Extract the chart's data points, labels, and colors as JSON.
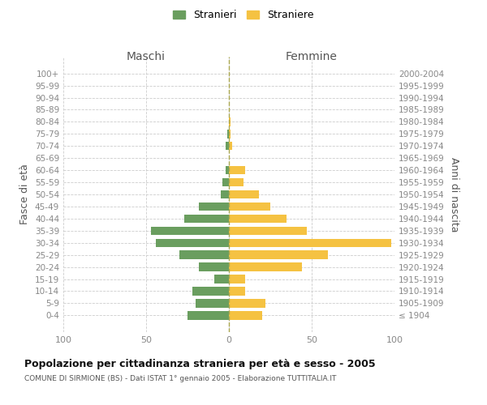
{
  "age_groups": [
    "100+",
    "95-99",
    "90-94",
    "85-89",
    "80-84",
    "75-79",
    "70-74",
    "65-69",
    "60-64",
    "55-59",
    "50-54",
    "45-49",
    "40-44",
    "35-39",
    "30-34",
    "25-29",
    "20-24",
    "15-19",
    "10-14",
    "5-9",
    "0-4"
  ],
  "birth_years": [
    "≤ 1904",
    "1905-1909",
    "1910-1914",
    "1915-1919",
    "1920-1924",
    "1925-1929",
    "1930-1934",
    "1935-1939",
    "1940-1944",
    "1945-1949",
    "1950-1954",
    "1955-1959",
    "1960-1964",
    "1965-1969",
    "1970-1974",
    "1975-1979",
    "1980-1984",
    "1985-1989",
    "1990-1994",
    "1995-1999",
    "2000-2004"
  ],
  "maschi": [
    0,
    0,
    0,
    0,
    0,
    1,
    2,
    0,
    2,
    4,
    5,
    18,
    27,
    47,
    44,
    30,
    18,
    9,
    22,
    20,
    25
  ],
  "femmine": [
    0,
    0,
    0,
    0,
    1,
    1,
    2,
    0,
    10,
    9,
    18,
    25,
    35,
    47,
    98,
    60,
    44,
    10,
    10,
    22,
    20
  ],
  "maschi_color": "#6a9e5f",
  "femmine_color": "#f5c242",
  "title": "Popolazione per cittadinanza straniera per età e sesso - 2005",
  "subtitle": "COMUNE DI SIRMIONE (BS) - Dati ISTAT 1° gennaio 2005 - Elaborazione TUTTITALIA.IT",
  "label_maschi": "Maschi",
  "label_femmine": "Femmine",
  "ylabel_left": "Fasce di età",
  "ylabel_right": "Anni di nascita",
  "xlim": 100,
  "legend_stranieri": "Stranieri",
  "legend_straniere": "Straniere",
  "bg_color": "#ffffff",
  "grid_color": "#cccccc",
  "text_color": "#888888",
  "axis_label_color": "#555555",
  "title_color": "#111111",
  "subtitle_color": "#555555"
}
